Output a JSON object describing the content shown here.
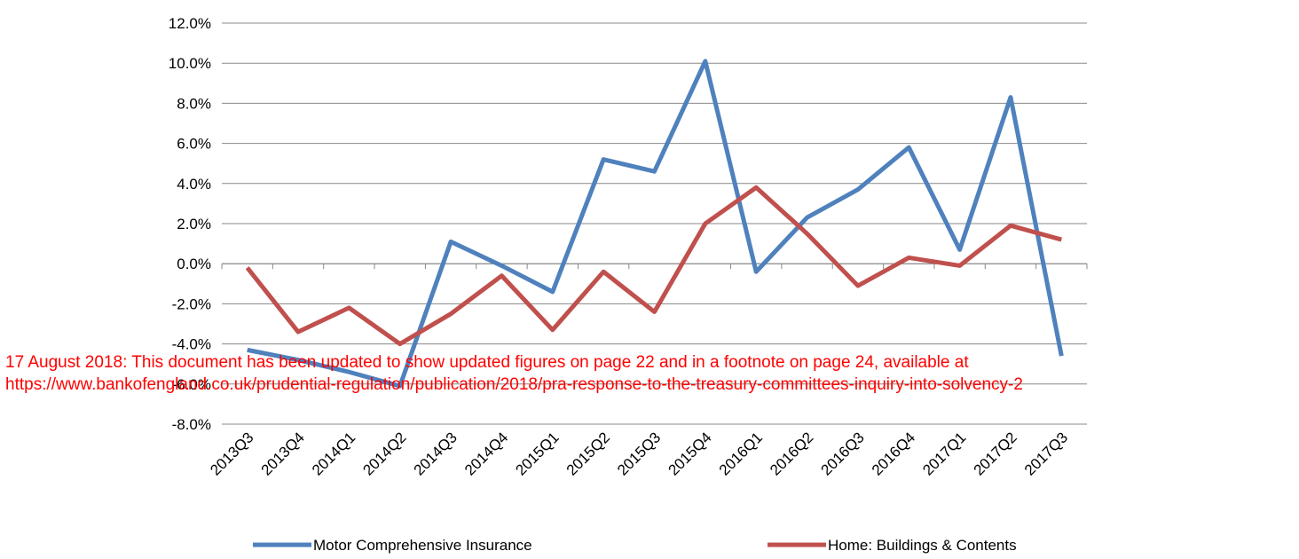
{
  "chart_data": {
    "type": "line",
    "categories": [
      "2013Q3",
      "2013Q4",
      "2014Q1",
      "2014Q2",
      "2014Q3",
      "2014Q4",
      "2015Q1",
      "2015Q2",
      "2015Q3",
      "2015Q4",
      "2016Q1",
      "2016Q2",
      "2016Q3",
      "2016Q4",
      "2017Q1",
      "2017Q2",
      "2017Q3"
    ],
    "series": [
      {
        "name": "Motor Comprehensive Insurance",
        "color": "#4f81bd",
        "values": [
          -4.3,
          -4.8,
          -5.4,
          -6.1,
          1.1,
          -0.1,
          -1.4,
          5.2,
          4.6,
          10.1,
          -0.4,
          2.3,
          3.7,
          5.8,
          0.7,
          8.3,
          -4.6
        ]
      },
      {
        "name": "Home: Buildings & Contents",
        "color": "#c0504d",
        "values": [
          -0.2,
          -3.4,
          -2.2,
          -4.0,
          -2.5,
          -0.6,
          -3.3,
          -0.4,
          -2.4,
          2.0,
          3.8,
          1.5,
          -1.1,
          0.3,
          -0.1,
          1.9,
          1.2
        ]
      }
    ],
    "ylim": [
      -8,
      12
    ],
    "yticks": [
      {
        "value": -8,
        "label": "-8.0%"
      },
      {
        "value": -6,
        "label": "-6.0%"
      },
      {
        "value": -4,
        "label": "-4.0%"
      },
      {
        "value": -2,
        "label": "-2.0%"
      },
      {
        "value": 0,
        "label": "0.0%"
      },
      {
        "value": 2,
        "label": "2.0%"
      },
      {
        "value": 4,
        "label": "4.0%"
      },
      {
        "value": 6,
        "label": "6.0%"
      },
      {
        "value": 8,
        "label": "8.0%"
      },
      {
        "value": 10,
        "label": "10.0%"
      },
      {
        "value": 12,
        "label": "12.0%"
      }
    ],
    "grid": true,
    "legend": "bottom",
    "annotation_lines": [
      "17 August 2018:  This document has been updated to show updated figures on page 22 and in a footnote on page 24, available at",
      "https://www.bankofengland.co.uk/prudential-regulation/publication/2018/pra-response-to-the-treasury-committees-inquiry-into-solvency-2"
    ]
  }
}
